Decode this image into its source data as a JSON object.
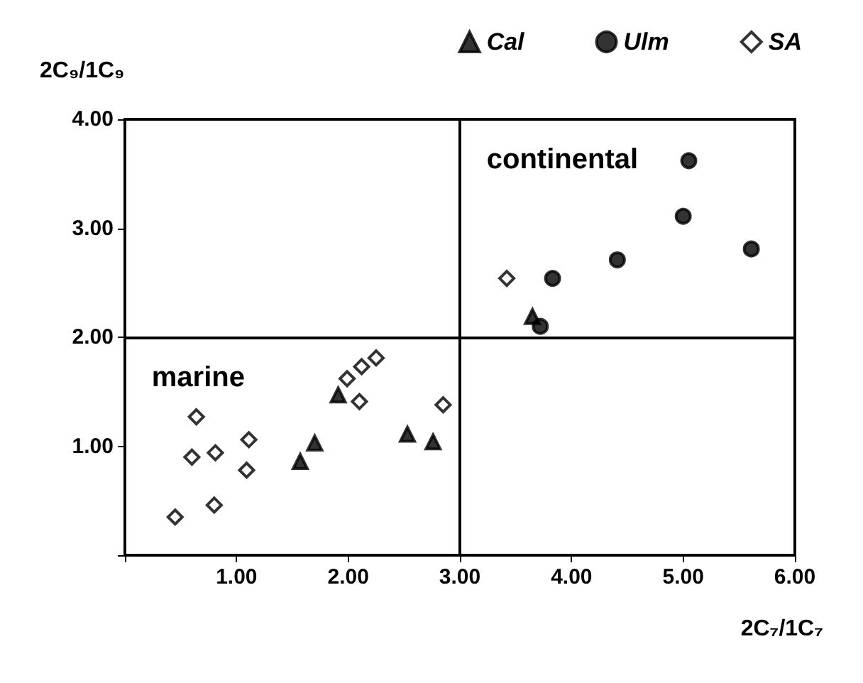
{
  "chart_data": {
    "type": "scatter",
    "xlabel": "2C₇/1C₇",
    "ylabel": "2C₉/1C₉",
    "xlim": [
      0,
      6
    ],
    "ylim": [
      0,
      4
    ],
    "xticks": [
      {
        "value": 0,
        "label": null
      },
      {
        "value": 1,
        "label": "1.00"
      },
      {
        "value": 2,
        "label": "2.00"
      },
      {
        "value": 3,
        "label": "3.00"
      },
      {
        "value": 4,
        "label": "4.00"
      },
      {
        "value": 5,
        "label": "5.00"
      },
      {
        "value": 6,
        "label": "6.00"
      }
    ],
    "yticks": [
      {
        "value": 0,
        "label": null
      },
      {
        "value": 1,
        "label": "1.00"
      },
      {
        "value": 2,
        "label": "2.00"
      },
      {
        "value": 3,
        "label": "3.00"
      },
      {
        "value": 4,
        "label": "4.00"
      }
    ],
    "grid": false,
    "legend": "top right",
    "series": [
      {
        "name": "Cal",
        "color": "#000000",
        "marker": "triangle",
        "x": [
          1.57,
          1.7,
          1.91,
          2.53,
          2.76,
          3.65
        ],
        "values": [
          0.86,
          1.03,
          1.47,
          1.11,
          1.04,
          2.19
        ]
      },
      {
        "name": "Ulm",
        "color": "#000000",
        "marker": "circle",
        "x": [
          3.72,
          3.83,
          4.41,
          5.0,
          5.05,
          5.61
        ],
        "values": [
          2.1,
          2.54,
          2.71,
          3.11,
          3.62,
          2.81
        ]
      },
      {
        "name": "SA",
        "color": "#000000",
        "marker": "diamond",
        "x": [
          0.45,
          0.64,
          0.6,
          0.81,
          0.8,
          1.11,
          1.09,
          1.99,
          2.12,
          2.25,
          2.1,
          2.85,
          3.42
        ],
        "values": [
          0.35,
          1.27,
          0.9,
          0.94,
          0.46,
          1.06,
          0.78,
          1.62,
          1.73,
          1.81,
          1.41,
          1.38,
          2.54
        ]
      }
    ],
    "ref_lines": [
      {
        "axis": "x",
        "value": 3,
        "color": "#000000"
      },
      {
        "axis": "y",
        "value": 2,
        "color": "#000000"
      }
    ],
    "annotations": [
      "marine",
      "continental"
    ]
  }
}
